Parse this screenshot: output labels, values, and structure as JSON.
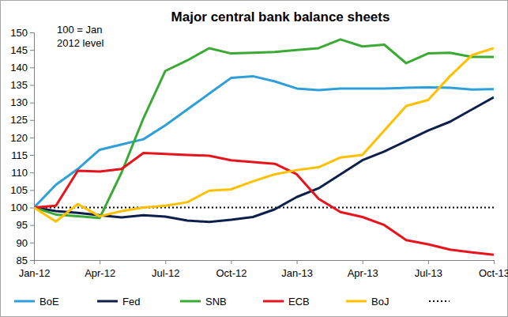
{
  "chart_data": {
    "type": "line",
    "title": "Major central bank balance sheets",
    "annotations": [
      "100 = Jan",
      "2012 level"
    ],
    "categories": [
      "Jan-12",
      null,
      null,
      "Apr-12",
      null,
      null,
      "Jul-12",
      null,
      null,
      "Oct-12",
      null,
      null,
      "Jan-13",
      null,
      null,
      "Apr-13",
      null,
      null,
      "Jul-13",
      null,
      null,
      "Oct-13"
    ],
    "series": [
      {
        "name": "BoE",
        "color": "#2e9fd8",
        "line_style": "solid",
        "values": [
          100,
          106.5,
          111,
          116.5,
          118,
          119.5,
          123.5,
          128,
          132.5,
          137,
          137.5,
          136,
          134,
          133.5,
          134,
          134,
          134,
          134.2,
          134.3,
          134.2,
          133.7,
          133.8
        ]
      },
      {
        "name": "Fed",
        "color": "#0d1f4b",
        "line_style": "solid",
        "values": [
          100,
          99,
          98.5,
          97.8,
          97.2,
          97.8,
          97.4,
          96.3,
          95.9,
          96.5,
          97.3,
          99.5,
          103,
          105.5,
          109.5,
          113.5,
          116,
          119,
          122,
          124.5,
          128,
          131.5
        ]
      },
      {
        "name": "SNB",
        "color": "#3aaa35",
        "line_style": "solid",
        "values": [
          100,
          98,
          97.5,
          97,
          110,
          125.5,
          139,
          142,
          145.5,
          144,
          144.2,
          144.4,
          145,
          145.5,
          148,
          146,
          146.5,
          141.2,
          144,
          144.2,
          143,
          143
        ]
      },
      {
        "name": "ECB",
        "color": "#e8141c",
        "line_style": "solid",
        "values": [
          100,
          100.5,
          110.5,
          110.3,
          111,
          115.6,
          115.3,
          115,
          114.8,
          113.5,
          113,
          112.5,
          109.5,
          102.5,
          98.7,
          97.3,
          95,
          90.7,
          89.5,
          88,
          87.2,
          86.5
        ]
      },
      {
        "name": "BoJ",
        "color": "#ffc000",
        "line_style": "solid",
        "values": [
          100,
          96,
          101,
          97.5,
          99,
          100,
          100.5,
          101.5,
          104.8,
          105.2,
          107.5,
          109.5,
          110.7,
          111.5,
          114.3,
          115,
          122,
          129,
          130.7,
          137.5,
          143.5,
          145.5
        ]
      },
      {
        "name": null,
        "color": "#000000",
        "line_style": "dotted",
        "values": [
          100,
          100,
          100,
          100,
          100,
          100,
          100,
          100,
          100,
          100,
          100,
          100,
          100,
          100,
          100,
          100,
          100,
          100,
          100,
          100,
          100,
          100
        ]
      }
    ],
    "ylim": [
      85,
      150
    ],
    "yticks": [
      85,
      90,
      95,
      100,
      105,
      110,
      115,
      120,
      125,
      130,
      135,
      140,
      145,
      150
    ],
    "grid": false,
    "legend": "bottom"
  }
}
